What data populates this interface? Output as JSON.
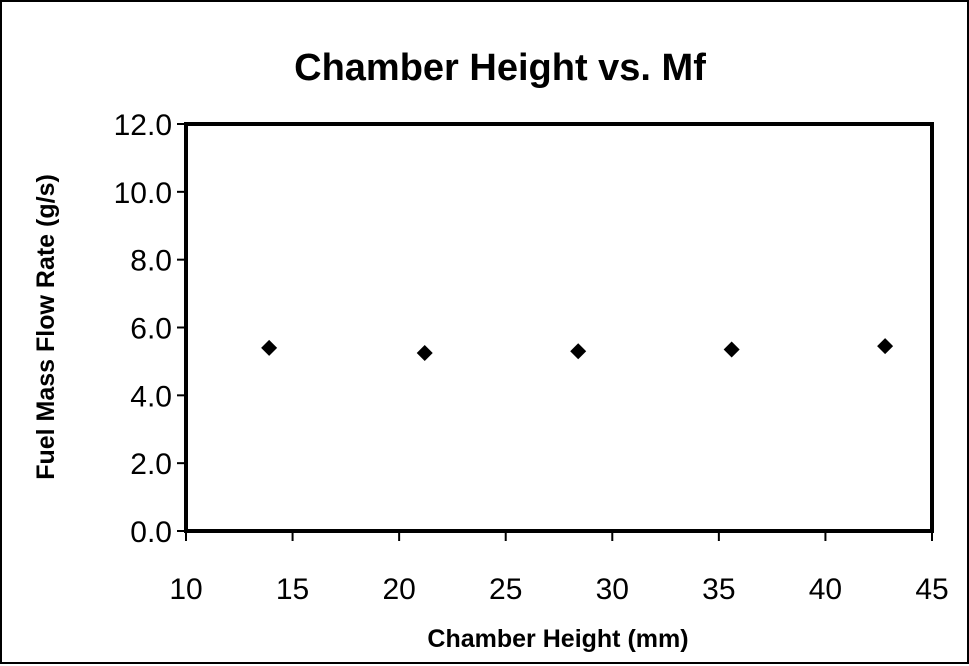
{
  "chart_data": {
    "type": "scatter",
    "title": "Chamber Height vs. Mf",
    "xlabel": "Chamber Height (mm)",
    "ylabel": "Fuel Mass Flow Rate (g/s)",
    "xlim": [
      10,
      45
    ],
    "ylim": [
      0,
      12
    ],
    "xticks": [
      "10",
      "15",
      "20",
      "25",
      "30",
      "35",
      "40",
      "45"
    ],
    "yticks": [
      "0.0",
      "2.0",
      "4.0",
      "6.0",
      "8.0",
      "10.0",
      "12.0"
    ],
    "grid": false,
    "legend": "none",
    "marker": "diamond",
    "colors": {
      "marker": "#000000",
      "axes": "#000000",
      "background": "#ffffff"
    },
    "series": [
      {
        "x": [
          13.9,
          21.2,
          28.4,
          35.6,
          42.8
        ],
        "y": [
          5.4,
          5.25,
          5.3,
          5.35,
          5.45
        ]
      }
    ]
  }
}
